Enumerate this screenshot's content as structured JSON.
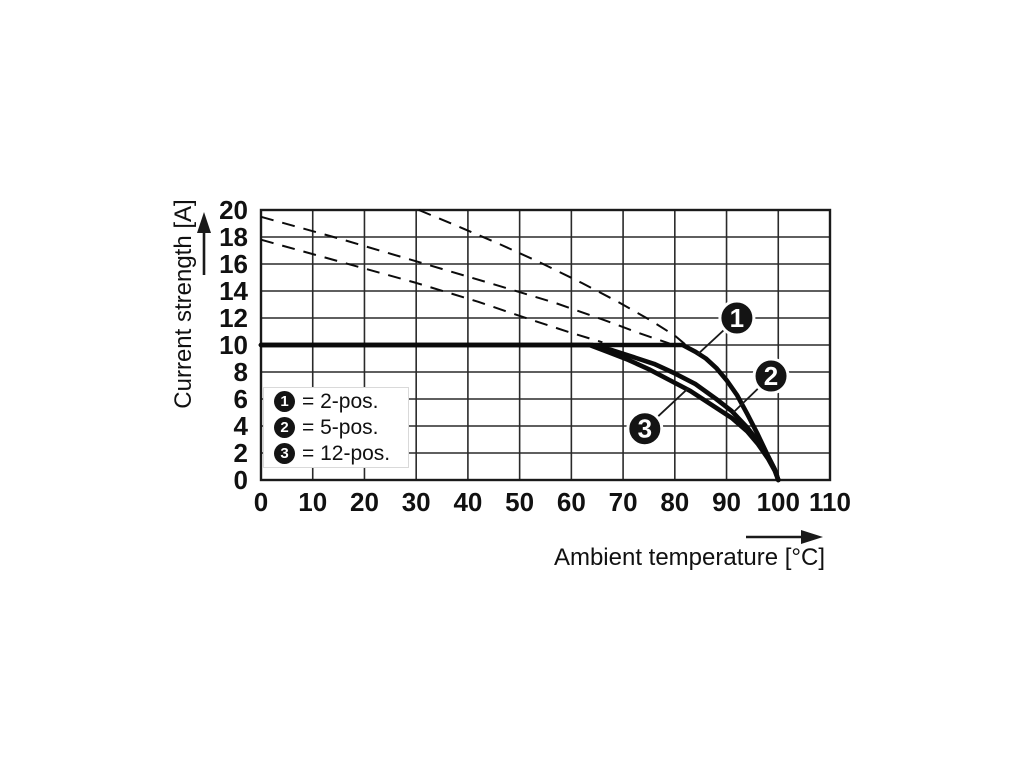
{
  "figure": {
    "y_axis_title": "Current strength [A]",
    "x_axis_title": "Ambient temperature [°C]"
  },
  "legend": {
    "items": [
      {
        "symbol": "1",
        "label": "= 2-pos."
      },
      {
        "symbol": "2",
        "label": "= 5-pos."
      },
      {
        "symbol": "3",
        "label": "= 12-pos."
      }
    ]
  },
  "chart_data": {
    "type": "line",
    "title": "",
    "xlabel": "Ambient temperature [°C]",
    "ylabel": "Current strength [A]",
    "xlim": [
      0,
      110
    ],
    "ylim": [
      0,
      20
    ],
    "x_ticks": [
      0,
      10,
      20,
      30,
      40,
      50,
      60,
      70,
      80,
      90,
      100,
      110
    ],
    "y_ticks": [
      0,
      2,
      4,
      6,
      8,
      10,
      12,
      14,
      16,
      18,
      20
    ],
    "grid": true,
    "legend_position": "lower-left",
    "colors": {
      "line": "#0b0b0b",
      "grid": "#2a2a2a",
      "background": "#ffffff"
    },
    "series": [
      {
        "name": "2-pos.",
        "callout": "1",
        "style": "solid",
        "width": 4.6,
        "points": [
          [
            0,
            10
          ],
          [
            81.5,
            10
          ],
          [
            84,
            9.5
          ],
          [
            86,
            9.0
          ],
          [
            88,
            8.3
          ],
          [
            90,
            7.4
          ],
          [
            92,
            6.3
          ],
          [
            94,
            4.9
          ],
          [
            96,
            3.4
          ],
          [
            98,
            1.8
          ],
          [
            99.2,
            0.9
          ],
          [
            100,
            0
          ]
        ]
      },
      {
        "name": "5-pos.",
        "callout": "2",
        "style": "solid",
        "width": 4.6,
        "points": [
          [
            0,
            10
          ],
          [
            64,
            10
          ],
          [
            68,
            9.6
          ],
          [
            72,
            9.1
          ],
          [
            76,
            8.6
          ],
          [
            80,
            7.9
          ],
          [
            84,
            7.1
          ],
          [
            88,
            6.0
          ],
          [
            91,
            5.1
          ],
          [
            94,
            3.9
          ],
          [
            96,
            2.9
          ],
          [
            98,
            1.7
          ],
          [
            99.3,
            0.8
          ],
          [
            100,
            0
          ]
        ]
      },
      {
        "name": "12-pos.",
        "callout": "3",
        "style": "solid",
        "width": 4.6,
        "points": [
          [
            0,
            10
          ],
          [
            63.5,
            10
          ],
          [
            67,
            9.5
          ],
          [
            71,
            8.9
          ],
          [
            75,
            8.2
          ],
          [
            79,
            7.4
          ],
          [
            83,
            6.6
          ],
          [
            87,
            5.6
          ],
          [
            91,
            4.6
          ],
          [
            94,
            3.6
          ],
          [
            96,
            2.7
          ],
          [
            98,
            1.6
          ],
          [
            99.3,
            0.7
          ],
          [
            100,
            0
          ]
        ]
      },
      {
        "name": "extension-dashed-1",
        "style": "dashed",
        "width": 2,
        "points": [
          [
            30.5,
            20
          ],
          [
            38,
            18.8
          ],
          [
            46,
            17.5
          ],
          [
            54,
            16.1
          ],
          [
            62,
            14.6
          ],
          [
            69,
            13.2
          ],
          [
            75,
            11.9
          ],
          [
            80,
            10.7
          ],
          [
            84,
            9.4
          ]
        ]
      },
      {
        "name": "extension-dashed-2",
        "style": "dashed",
        "width": 2,
        "points": [
          [
            0,
            19.5
          ],
          [
            15,
            17.9
          ],
          [
            30,
            16.2
          ],
          [
            45,
            14.5
          ],
          [
            57,
            13.1
          ],
          [
            66,
            11.9
          ],
          [
            73,
            10.9
          ],
          [
            79,
            10.1
          ]
        ]
      },
      {
        "name": "extension-dashed-3",
        "style": "dashed",
        "width": 2,
        "points": [
          [
            0,
            17.8
          ],
          [
            15,
            16.2
          ],
          [
            30,
            14.6
          ],
          [
            42,
            13.2
          ],
          [
            52,
            11.9
          ],
          [
            60,
            10.9
          ],
          [
            66,
            10.2
          ]
        ]
      }
    ],
    "callouts": [
      {
        "label": "1",
        "series": "2-pos.",
        "at": [
          92.0,
          12.0
        ],
        "points_to": [
          84.4,
          9.3
        ]
      },
      {
        "label": "2",
        "series": "5-pos.",
        "at": [
          98.6,
          7.7
        ],
        "points_to": [
          91.3,
          5.0
        ]
      },
      {
        "label": "3",
        "series": "12-pos.",
        "at": [
          74.2,
          3.8
        ],
        "points_to": [
          82.6,
          6.8
        ]
      }
    ]
  }
}
